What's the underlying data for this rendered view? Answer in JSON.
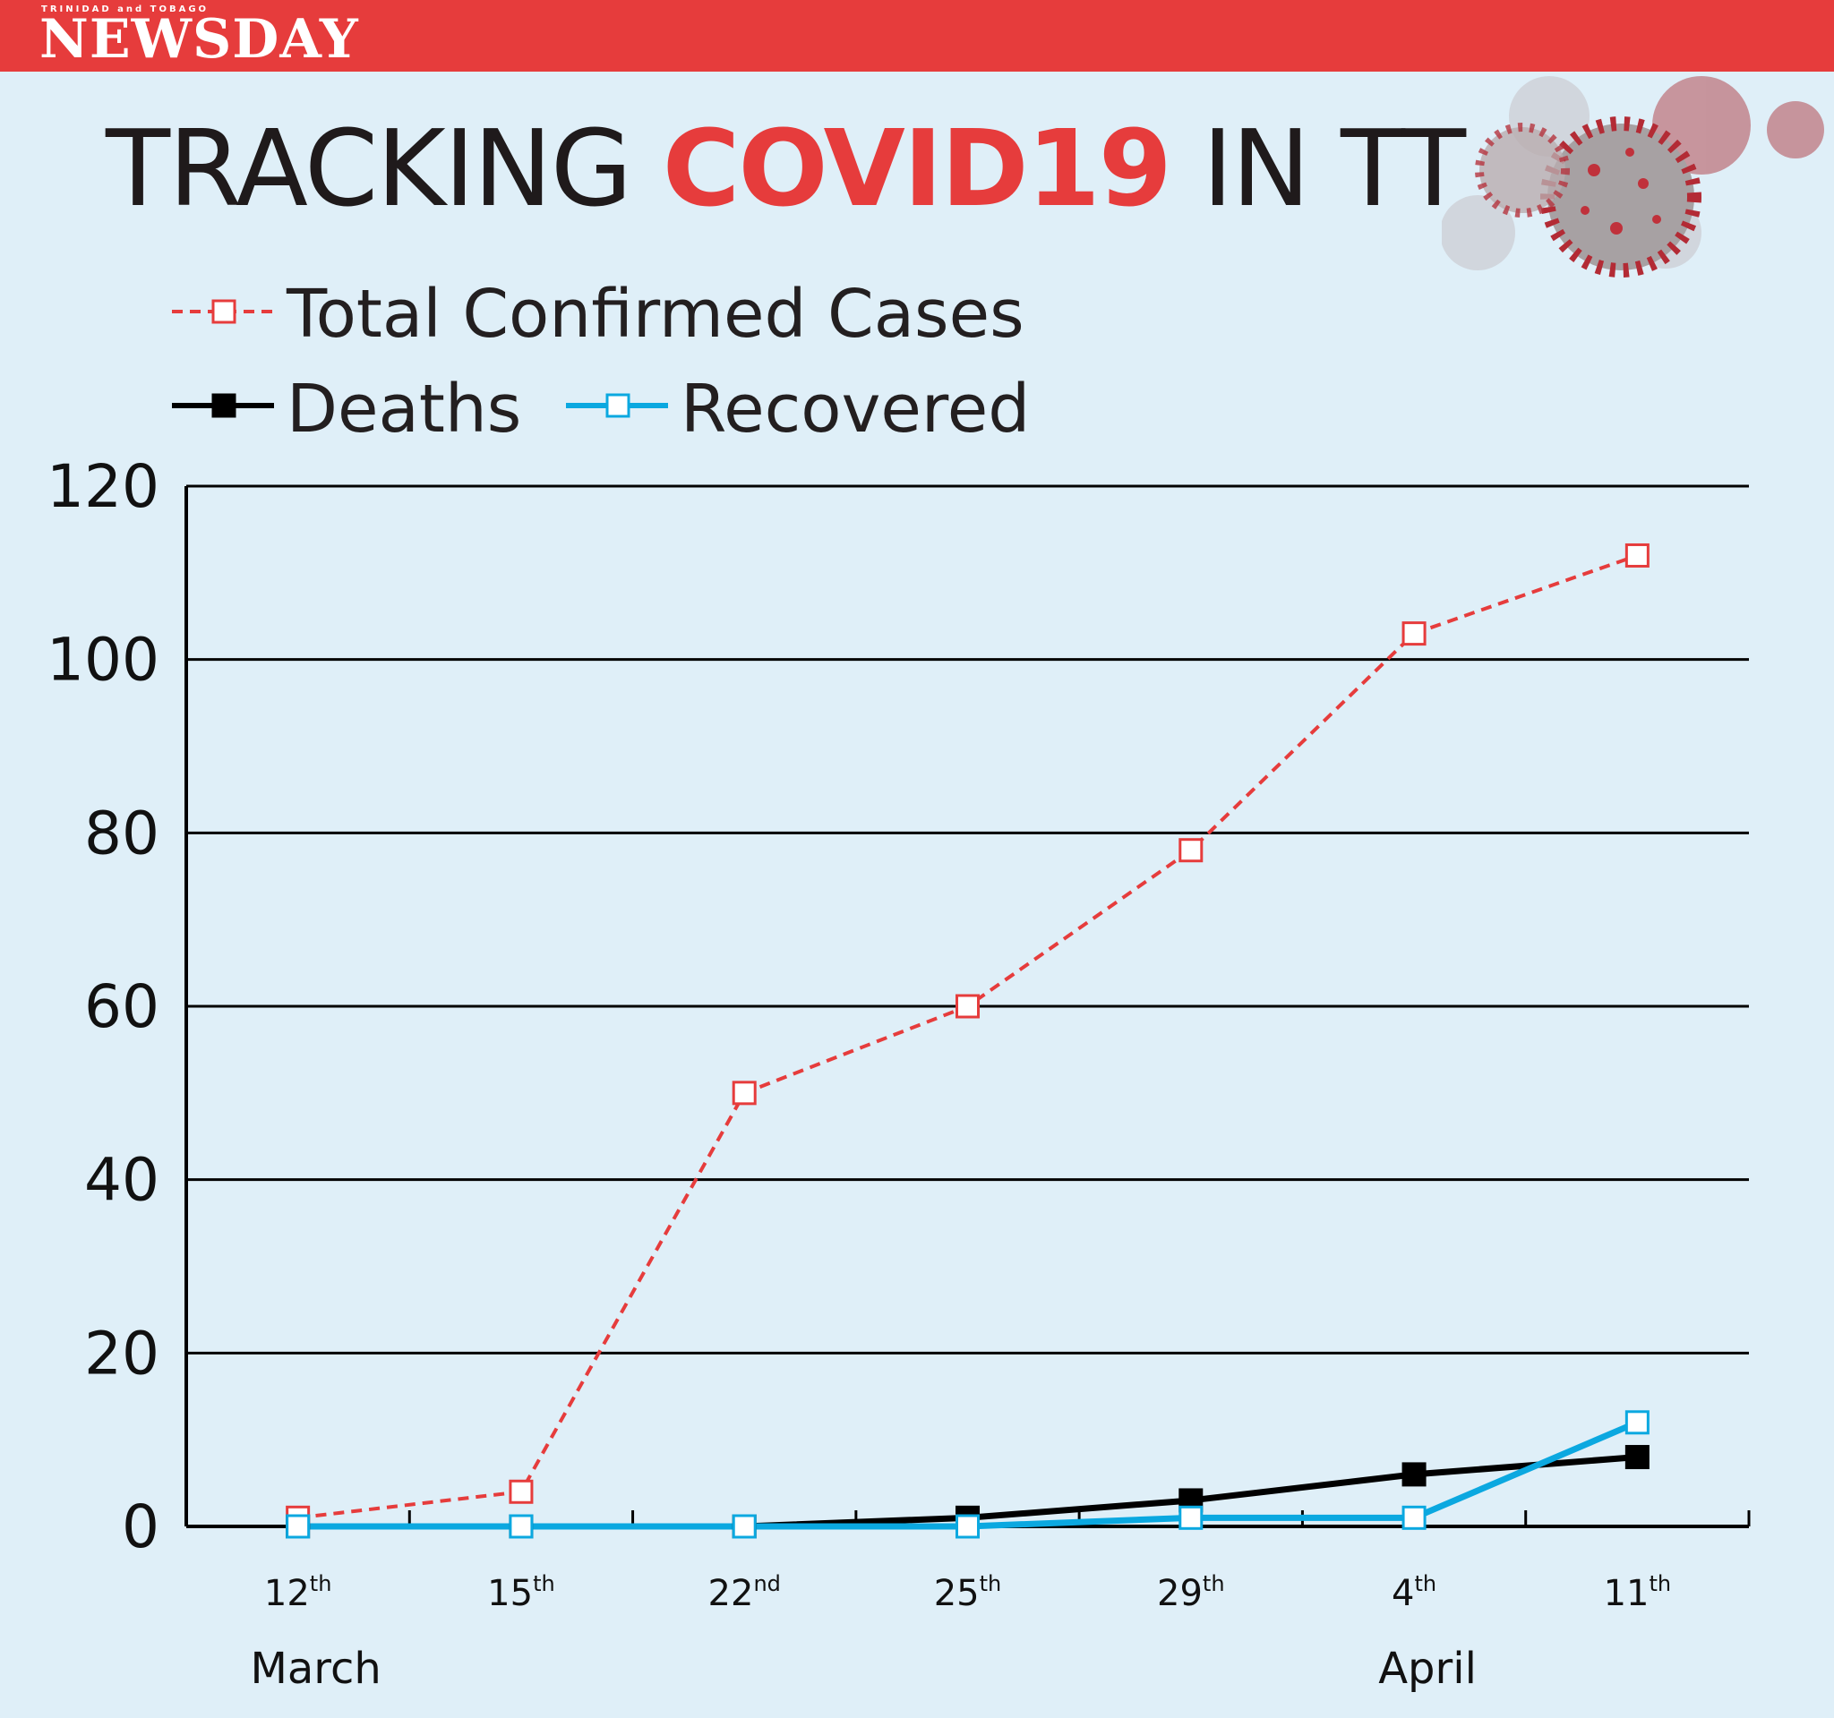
{
  "header": {
    "brand_small": "TRINIDAD and TOBAGO",
    "brand": "NEWSDAY",
    "headline_pre": "TRACKING ",
    "headline_accent": "COVID19",
    "headline_post": " IN TT"
  },
  "colors": {
    "brand_red": "#e63c3c",
    "background": "#dfeff8",
    "cases": "#e63c3c",
    "deaths": "#000000",
    "recovered": "#0ba8e0"
  },
  "chart_data": {
    "type": "line",
    "title": "TRACKING COVID19 IN TT",
    "x": [
      {
        "day": "12",
        "suffix": "th"
      },
      {
        "day": "15",
        "suffix": "th"
      },
      {
        "day": "22",
        "suffix": "nd"
      },
      {
        "day": "25",
        "suffix": "th"
      },
      {
        "day": "29",
        "suffix": "th"
      },
      {
        "day": "4",
        "suffix": "th"
      },
      {
        "day": "11",
        "suffix": "th"
      }
    ],
    "month_labels": [
      "March",
      "April"
    ],
    "series": [
      {
        "name": "Total Confirmed Cases",
        "style": "dashed",
        "marker": "open-square",
        "values": [
          1,
          4,
          50,
          60,
          78,
          103,
          112
        ]
      },
      {
        "name": "Deaths",
        "style": "solid",
        "marker": "filled-square",
        "values": [
          0,
          0,
          0,
          1,
          3,
          6,
          8
        ]
      },
      {
        "name": "Recovered",
        "style": "solid",
        "marker": "open-square",
        "values": [
          0,
          0,
          0,
          0,
          1,
          1,
          12
        ]
      }
    ],
    "yticks": [
      "0",
      "20",
      "40",
      "60",
      "80",
      "100",
      "120"
    ],
    "ylim": [
      0,
      120
    ],
    "grid": true,
    "legend": "top-left"
  }
}
